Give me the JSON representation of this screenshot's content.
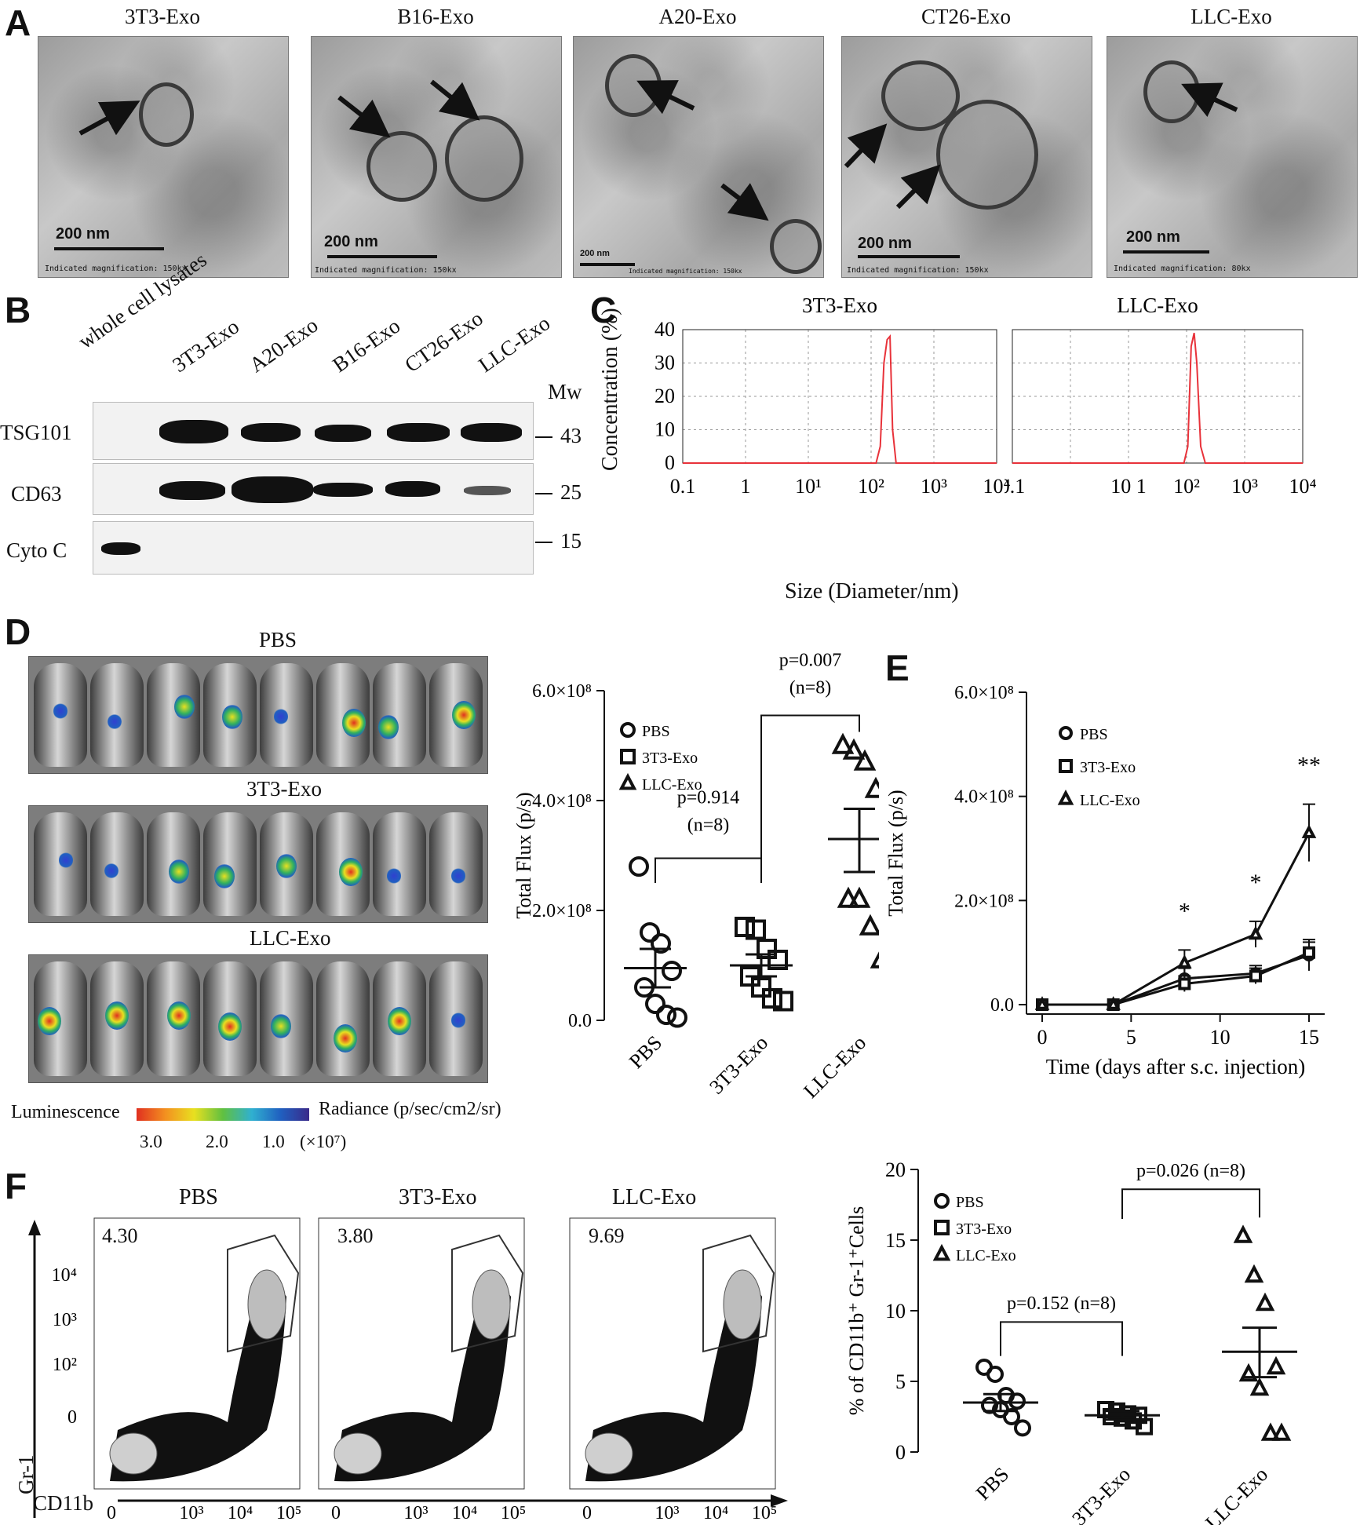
{
  "panel_a": {
    "label": "A",
    "images": [
      {
        "title": "3T3-Exo",
        "scale": "200 nm",
        "magnification": "Indicated magnification: 150kx"
      },
      {
        "title": "B16-Exo",
        "scale": "200 nm",
        "magnification": "Indicated magnification: 150kx"
      },
      {
        "title": "A20-Exo",
        "scale": "200 nm",
        "magnification": "Indicated magnification: 150kx"
      },
      {
        "title": "CT26-Exo",
        "scale": "200 nm",
        "magnification": "Indicated magnification: 150kx"
      },
      {
        "title": "LLC-Exo",
        "scale": "200 nm",
        "magnification": "Indicated magnification: 80kx"
      }
    ]
  },
  "panel_b": {
    "label": "B",
    "lanes": [
      "whole cell lysates",
      "3T3-Exo",
      "A20-Exo",
      "B16-Exo",
      "CT26-Exo",
      "LLC-Exo"
    ],
    "mw_header": "Mw",
    "rows": [
      {
        "name": "TSG101",
        "mw": "43"
      },
      {
        "name": "CD63",
        "mw": "25"
      },
      {
        "name": "Cyto C",
        "mw": "15"
      }
    ]
  },
  "panel_c": {
    "label": "C",
    "xlabel": "Size (Diameter/nm)",
    "ylabel": "Concentration (%)"
  },
  "panel_d": {
    "label": "D",
    "groups": [
      "PBS",
      "3T3-Exo",
      "LLC-Exo"
    ],
    "colorbar_left": "Luminescence",
    "colorbar_right": "Radiance (p/sec/cm2/sr)",
    "colorbar_ticks": [
      "3.0",
      "2.0",
      "1.0",
      "(×10⁷)"
    ]
  },
  "panel_e": {
    "label": "E"
  },
  "panel_f": {
    "label": "F",
    "plots": [
      {
        "title": "PBS",
        "gate_value": "4.30"
      },
      {
        "title": "3T3-Exo",
        "gate_value": "3.80"
      },
      {
        "title": "LLC-Exo",
        "gate_value": "9.69"
      }
    ],
    "y_axis_label": "Gr-1",
    "x_axis_label": "CD11b"
  },
  "chart_data": [
    {
      "id": "C-left",
      "type": "line",
      "title": "3T3-Exo",
      "xlabel": "Size (Diameter/nm)",
      "ylabel": "Concentration (%)",
      "x_scale": "log",
      "xlim": [
        0.1,
        10000
      ],
      "ylim": [
        0,
        40
      ],
      "x_ticks": [
        "0.1",
        "1",
        "10¹",
        "10²",
        "10³",
        "10⁴"
      ],
      "y_ticks": [
        "0",
        "10",
        "20",
        "30",
        "40"
      ],
      "grid": true,
      "series": [
        {
          "color": "#e8323a",
          "x": [
            120,
            140,
            160,
            180,
            200,
            220,
            250
          ],
          "y": [
            0,
            5,
            30,
            37,
            38,
            10,
            0
          ]
        }
      ]
    },
    {
      "id": "C-right",
      "type": "line",
      "title": "LLC-Exo",
      "xlabel": "Size (Diameter/nm)",
      "ylabel": "Concentration (%)",
      "x_scale": "log",
      "xlim": [
        0.1,
        10000
      ],
      "ylim": [
        0,
        40
      ],
      "x_ticks": [
        "0.1",
        "10 1",
        "10²",
        "10³",
        "10⁴"
      ],
      "grid": true,
      "series": [
        {
          "color": "#e8323a",
          "x": [
            90,
            105,
            120,
            135,
            150,
            175,
            210
          ],
          "y": [
            0,
            5,
            35,
            39,
            30,
            5,
            0
          ]
        }
      ]
    },
    {
      "id": "D-scatter",
      "type": "scatter",
      "ylabel": "Total Flux (p/s)",
      "categories": [
        "PBS",
        "3T3-Exo",
        "LLC-Exo"
      ],
      "ylim": [
        0,
        600000000
      ],
      "y_ticks": [
        "0.0",
        "2.0×10⁸",
        "4.0×10⁸",
        "6.0×10⁸"
      ],
      "legend": [
        "PBS",
        "3T3-Exo",
        "LLC-Exo"
      ],
      "series": [
        {
          "name": "PBS",
          "marker": "circle",
          "values": [
            280000000,
            160000000,
            140000000,
            90000000,
            60000000,
            30000000,
            10000000,
            5000000
          ],
          "mean": 95000000,
          "sem_low": 60000000,
          "sem_high": 130000000
        },
        {
          "name": "3T3-Exo",
          "marker": "square",
          "values": [
            170000000,
            165000000,
            130000000,
            110000000,
            80000000,
            60000000,
            40000000,
            35000000
          ],
          "mean": 100000000,
          "sem_low": 80000000,
          "sem_high": 120000000
        },
        {
          "name": "LLC-Exo",
          "marker": "triangle",
          "values": [
            500000000,
            490000000,
            470000000,
            420000000,
            220000000,
            220000000,
            170000000,
            110000000
          ],
          "mean": 330000000,
          "sem_low": 270000000,
          "sem_high": 385000000
        }
      ],
      "annotations": [
        "p=0.914",
        "(n=8)",
        "p=0.007",
        "(n=8)"
      ]
    },
    {
      "id": "E-line",
      "type": "line",
      "xlabel": "Time (days after s.c. injection)",
      "ylabel": "Total Flux (p/s)",
      "x_ticks": [
        "0",
        "5",
        "10",
        "15"
      ],
      "y_ticks": [
        "0.0",
        "2.0×10⁸",
        "4.0×10⁸",
        "6.0×10⁸"
      ],
      "xlim": [
        0,
        15
      ],
      "ylim": [
        0,
        600000000
      ],
      "legend": [
        "PBS",
        "3T3-Exo",
        "LLC-Exo"
      ],
      "series": [
        {
          "name": "PBS",
          "marker": "circle",
          "x": [
            0,
            4,
            8,
            12,
            15
          ],
          "y": [
            0,
            0,
            50000000,
            60000000,
            95000000
          ],
          "err": [
            0,
            0,
            20000000,
            15000000,
            30000000
          ]
        },
        {
          "name": "3T3-Exo",
          "marker": "square",
          "x": [
            0,
            4,
            8,
            12,
            15
          ],
          "y": [
            0,
            0,
            40000000,
            55000000,
            100000000
          ],
          "err": [
            0,
            0,
            15000000,
            15000000,
            20000000
          ]
        },
        {
          "name": "LLC-Exo",
          "marker": "triangle",
          "x": [
            0,
            4,
            8,
            12,
            15
          ],
          "y": [
            0,
            0,
            80000000,
            135000000,
            330000000
          ],
          "err": [
            0,
            0,
            25000000,
            25000000,
            55000000
          ]
        }
      ],
      "annotations": [
        {
          "x": 8,
          "text": "*"
        },
        {
          "x": 12,
          "text": "*"
        },
        {
          "x": 15,
          "text": "**"
        }
      ]
    },
    {
      "id": "F-scatter",
      "type": "scatter",
      "ylabel": "% of CD11b⁺ Gr-1⁺Cells",
      "categories": [
        "PBS",
        "3T3-Exo",
        "LLC-Exo"
      ],
      "ylim": [
        0,
        20
      ],
      "y_ticks": [
        "0",
        "5",
        "10",
        "15",
        "20"
      ],
      "legend": [
        "PBS",
        "3T3-Exo",
        "LLC-Exo"
      ],
      "series": [
        {
          "name": "PBS",
          "marker": "circle",
          "values": [
            6.0,
            5.5,
            4.0,
            3.6,
            3.3,
            3.0,
            2.5,
            1.7
          ],
          "mean": 3.5,
          "sem_low": 2.9,
          "sem_high": 4.1
        },
        {
          "name": "3T3-Exo",
          "marker": "square",
          "values": [
            3.0,
            2.9,
            2.7,
            2.6,
            2.5,
            2.4,
            2.2,
            1.8
          ],
          "mean": 2.6,
          "sem_low": 2.3,
          "sem_high": 2.9
        },
        {
          "name": "LLC-Exo",
          "marker": "triangle",
          "values": [
            15.3,
            12.5,
            10.5,
            6.0,
            5.5,
            4.5,
            1.3,
            1.3
          ],
          "mean": 7.1,
          "sem_low": 5.3,
          "sem_high": 8.8
        }
      ],
      "annotations": [
        "p=0.152 (n=8)",
        "p=0.026 (n=8)"
      ]
    }
  ]
}
